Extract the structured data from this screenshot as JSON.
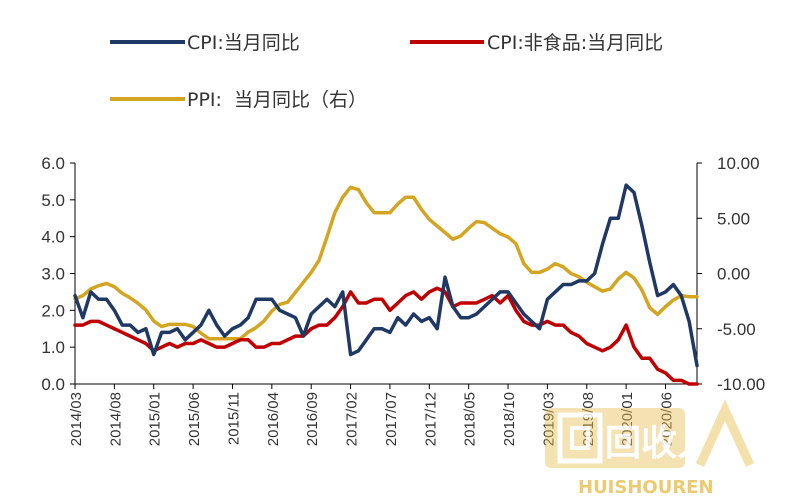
{
  "chart_data": {
    "type": "line",
    "title": "",
    "legend": {
      "placement": "top",
      "entries": [
        "CPI:当月同比",
        "CPI:非食品:当月同比",
        "PPI:  当月同比（右）"
      ]
    },
    "x": [
      "2014/03",
      "2014/04",
      "2014/05",
      "2014/06",
      "2014/07",
      "2014/08",
      "2014/09",
      "2014/10",
      "2014/11",
      "2014/12",
      "2015/01",
      "2015/02",
      "2015/03",
      "2015/04",
      "2015/05",
      "2015/06",
      "2015/07",
      "2015/08",
      "2015/09",
      "2015/10",
      "2015/11",
      "2015/12",
      "2016/01",
      "2016/02",
      "2016/03",
      "2016/04",
      "2016/05",
      "2016/06",
      "2016/07",
      "2016/08",
      "2016/09",
      "2016/10",
      "2016/11",
      "2016/12",
      "2017/01",
      "2017/02",
      "2017/03",
      "2017/04",
      "2017/05",
      "2017/06",
      "2017/07",
      "2017/08",
      "2017/09",
      "2017/10",
      "2017/11",
      "2017/12",
      "2018/01",
      "2018/02",
      "2018/03",
      "2018/04",
      "2018/05",
      "2018/06",
      "2018/07",
      "2018/08",
      "2018/09",
      "2018/10",
      "2018/11",
      "2018/12",
      "2019/01",
      "2019/02",
      "2019/03",
      "2019/04",
      "2019/05",
      "2019/06",
      "2019/07",
      "2019/08",
      "2019/09",
      "2019/10",
      "2019/11",
      "2019/12",
      "2020/01",
      "2020/02",
      "2020/03",
      "2020/04",
      "2020/05",
      "2020/06",
      "2020/07",
      "2020/08",
      "2020/09",
      "2020/10"
    ],
    "x_tick_labels": [
      "2014/03",
      "2014/08",
      "2015/01",
      "2015/06",
      "2015/11",
      "2016/04",
      "2016/09",
      "2017/02",
      "2017/07",
      "2017/12",
      "2018/05",
      "2018/10",
      "2019/03",
      "2019/08",
      "2020/01",
      "2020/06"
    ],
    "series": [
      {
        "name": "CPI:当月同比",
        "axis": "left",
        "color": "#1f3864",
        "values": [
          2.4,
          1.8,
          2.5,
          2.3,
          2.3,
          2.0,
          1.6,
          1.6,
          1.4,
          1.5,
          0.8,
          1.4,
          1.4,
          1.5,
          1.2,
          1.4,
          1.6,
          2.0,
          1.6,
          1.3,
          1.5,
          1.6,
          1.8,
          2.3,
          2.3,
          2.3,
          2.0,
          1.9,
          1.8,
          1.3,
          1.9,
          2.1,
          2.3,
          2.1,
          2.5,
          0.8,
          0.9,
          1.2,
          1.5,
          1.5,
          1.4,
          1.8,
          1.6,
          1.9,
          1.7,
          1.8,
          1.5,
          2.9,
          2.1,
          1.8,
          1.8,
          1.9,
          2.1,
          2.3,
          2.5,
          2.5,
          2.2,
          1.9,
          1.7,
          1.5,
          2.3,
          2.5,
          2.7,
          2.7,
          2.8,
          2.8,
          3.0,
          3.8,
          4.5,
          4.5,
          5.4,
          5.2,
          4.3,
          3.3,
          2.4,
          2.5,
          2.7,
          2.4,
          1.7,
          0.5
        ]
      },
      {
        "name": "CPI:非食品:当月同比",
        "axis": "left",
        "color": "#c00000",
        "values": [
          1.6,
          1.6,
          1.7,
          1.7,
          1.6,
          1.5,
          1.4,
          1.3,
          1.2,
          1.1,
          0.9,
          1.0,
          1.1,
          1.0,
          1.1,
          1.1,
          1.2,
          1.1,
          1.0,
          1.0,
          1.1,
          1.2,
          1.2,
          1.0,
          1.0,
          1.1,
          1.1,
          1.2,
          1.3,
          1.3,
          1.5,
          1.6,
          1.6,
          1.8,
          2.1,
          2.5,
          2.2,
          2.2,
          2.3,
          2.3,
          2.0,
          2.2,
          2.4,
          2.5,
          2.3,
          2.5,
          2.6,
          2.5,
          2.1,
          2.2,
          2.2,
          2.2,
          2.3,
          2.4,
          2.2,
          2.4,
          2.0,
          1.7,
          1.6,
          1.6,
          1.7,
          1.6,
          1.6,
          1.4,
          1.3,
          1.1,
          1.0,
          0.9,
          1.0,
          1.2,
          1.6,
          1.0,
          0.7,
          0.7,
          0.4,
          0.3,
          0.1,
          0.1,
          0.0,
          0.0
        ]
      },
      {
        "name": "PPI:  当月同比（右）",
        "axis": "right",
        "color": "#d4a520",
        "values": [
          -2.3,
          -2.0,
          -1.4,
          -1.1,
          -0.9,
          -1.2,
          -1.8,
          -2.2,
          -2.7,
          -3.3,
          -4.3,
          -4.8,
          -4.6,
          -4.6,
          -4.6,
          -4.8,
          -5.4,
          -5.9,
          -5.9,
          -5.9,
          -5.9,
          -5.9,
          -5.3,
          -4.9,
          -4.3,
          -3.4,
          -2.8,
          -2.6,
          -1.7,
          -0.8,
          0.1,
          1.2,
          3.3,
          5.5,
          6.9,
          7.8,
          7.6,
          6.4,
          5.5,
          5.5,
          5.5,
          6.3,
          6.9,
          6.9,
          5.8,
          4.9,
          4.3,
          3.7,
          3.1,
          3.4,
          4.1,
          4.7,
          4.6,
          4.1,
          3.6,
          3.3,
          2.7,
          0.9,
          0.1,
          0.1,
          0.4,
          0.9,
          0.6,
          0.0,
          -0.3,
          -0.8,
          -1.2,
          -1.6,
          -1.4,
          -0.5,
          0.1,
          -0.4,
          -1.5,
          -3.1,
          -3.7,
          -3.0,
          -2.4,
          -2.0,
          -2.1,
          -2.1
        ]
      }
    ],
    "y_left": {
      "lim": [
        0.0,
        6.0
      ],
      "ticks": [
        "6.0",
        "5.0",
        "4.0",
        "3.0",
        "2.0",
        "1.0",
        "0.0"
      ],
      "tick_values": [
        6,
        5,
        4,
        3,
        2,
        1,
        0
      ]
    },
    "y_right": {
      "lim": [
        -10.0,
        10.0
      ],
      "ticks": [
        "10.00",
        "5.00",
        "0.00",
        "-5.00",
        "-10.00"
      ],
      "tick_values": [
        10,
        5,
        0,
        -5,
        -10
      ]
    },
    "grid": false
  },
  "watermark": {
    "text": "回收人",
    "subtext": "HUISHOUREN"
  }
}
